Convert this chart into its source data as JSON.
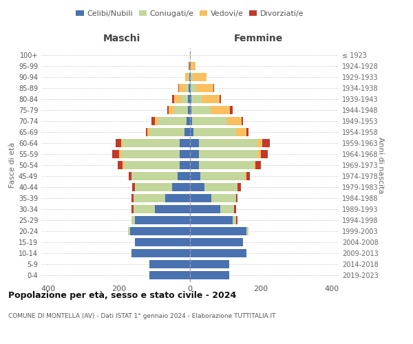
{
  "age_groups": [
    "0-4",
    "5-9",
    "10-14",
    "15-19",
    "20-24",
    "25-29",
    "30-34",
    "35-39",
    "40-44",
    "45-49",
    "50-54",
    "55-59",
    "60-64",
    "65-69",
    "70-74",
    "75-79",
    "80-84",
    "85-89",
    "90-94",
    "95-99",
    "100+"
  ],
  "birth_years": [
    "2019-2023",
    "2014-2018",
    "2009-2013",
    "2004-2008",
    "1999-2003",
    "1994-1998",
    "1989-1993",
    "1984-1988",
    "1979-1983",
    "1974-1978",
    "1969-1973",
    "1964-1968",
    "1959-1963",
    "1954-1958",
    "1949-1953",
    "1944-1948",
    "1939-1943",
    "1934-1938",
    "1929-1933",
    "1924-1928",
    "≤ 1923"
  ],
  "colors": {
    "celibi": "#4a72b0",
    "coniugati": "#c3d69b",
    "vedovi": "#fac05f",
    "divorziati": "#c0392b",
    "grid": "#cccccc",
    "dashed_line": "#9999bb"
  },
  "maschi": {
    "celibi": [
      115,
      115,
      165,
      155,
      170,
      155,
      100,
      70,
      50,
      35,
      30,
      30,
      30,
      15,
      10,
      5,
      5,
      3,
      2,
      1,
      0
    ],
    "coniugati": [
      0,
      0,
      0,
      0,
      5,
      10,
      60,
      90,
      105,
      130,
      155,
      165,
      160,
      100,
      80,
      40,
      20,
      8,
      2,
      0,
      0
    ],
    "vedovi": [
      0,
      0,
      0,
      0,
      0,
      0,
      0,
      0,
      0,
      0,
      5,
      5,
      5,
      5,
      10,
      15,
      20,
      20,
      10,
      5,
      0
    ],
    "divorziati": [
      0,
      0,
      0,
      0,
      0,
      0,
      5,
      5,
      8,
      8,
      15,
      20,
      15,
      5,
      8,
      5,
      5,
      2,
      0,
      0,
      0
    ]
  },
  "femmine": {
    "nubili": [
      110,
      110,
      160,
      150,
      160,
      120,
      85,
      60,
      40,
      30,
      25,
      25,
      25,
      10,
      5,
      3,
      3,
      2,
      2,
      1,
      0
    ],
    "coniugate": [
      0,
      0,
      0,
      0,
      5,
      10,
      40,
      70,
      95,
      125,
      155,
      165,
      165,
      120,
      100,
      55,
      30,
      15,
      5,
      0,
      0
    ],
    "vedove": [
      0,
      0,
      0,
      0,
      0,
      0,
      0,
      0,
      0,
      5,
      5,
      10,
      15,
      30,
      40,
      55,
      50,
      50,
      40,
      15,
      1
    ],
    "divorziate": [
      0,
      0,
      0,
      0,
      0,
      5,
      5,
      5,
      8,
      10,
      15,
      20,
      20,
      5,
      5,
      8,
      5,
      2,
      0,
      0,
      0
    ]
  },
  "title": "Popolazione per età, sesso e stato civile - 2024",
  "subtitle": "COMUNE DI MONTELLA (AV) - Dati ISTAT 1° gennaio 2024 - Elaborazione TUTTITALIA.IT",
  "xlabel_left": "Maschi",
  "xlabel_right": "Femmine",
  "ylabel_left": "Fasce di età",
  "ylabel_right": "Anni di nascita",
  "xlim": 420,
  "legend_labels": [
    "Celibi/Nubili",
    "Coniugati/e",
    "Vedovi/e",
    "Divorziati/e"
  ]
}
